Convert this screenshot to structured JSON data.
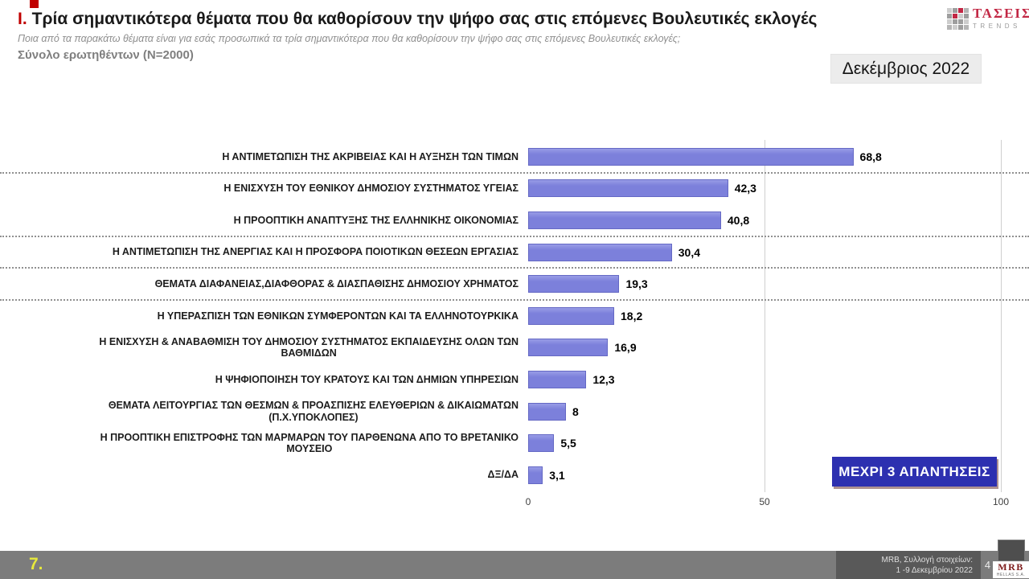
{
  "slide": {
    "title_prefix": "Ι.",
    "title": "Τρία σημαντικότερα θέματα που θα καθορίσουν την ψήφο σας στις επόμενες Βουλευτικές εκλογές",
    "subtitle": "Ποια από τα παρακάτω θέματα είναι για εσάς προσωπικά τα τρία σημαντικότερα που θα καθορίσουν την ψήφο σας στις επόμενες Βουλευτικές εκλογές;",
    "sample": "Σύνολο ερωτηθέντων (N=2000)",
    "date_badge": "Δεκέμβριος 2022",
    "answers_badge": "ΜΕΧΡΙ 3 ΑΠΑΝΤΗΣΕΙΣ",
    "slide_marker": "7.",
    "page_number": "4"
  },
  "taseis_logo": {
    "name": "ΤΑΣΕΙΣ",
    "sub": "TRENDS"
  },
  "footer": {
    "source_line1": "MRB, Συλλογή στοιχείων:",
    "source_line2": "1 -9 Δεκεμβρίου 2022",
    "mrb_name": "MRB",
    "mrb_sub": "HELLAS S.A."
  },
  "colors": {
    "accent_red": "#C00000",
    "bar_color": "#7C80DB",
    "badge_blue": "#2D30B0",
    "footer_gray": "#7C7C7C",
    "footer_dark": "#595959",
    "marker_yellow": "#E7E93B",
    "logo_red": "#C22744"
  },
  "chart_data": {
    "type": "bar",
    "orientation": "horizontal",
    "title": "Τρία σημαντικότερα θέματα που θα καθορίσουν την ψήφο σας στις επόμενες Βουλευτικές εκλογές",
    "categories": [
      "Η ΑΝΤΙΜΕΤΩΠΙΣΗ ΤΗΣ ΑΚΡΙΒΕΙΑΣ ΚΑΙ Η ΑΥΞΗΣΗ ΤΩΝ ΤΙΜΩΝ",
      "Η ΕΝΙΣΧΥΣΗ ΤΟΥ ΕΘΝΙΚΟΥ ΔΗΜΟΣΙΟΥ ΣΥΣΤΗΜΑΤΟΣ ΥΓΕΙΑΣ",
      "Η ΠΡΟΟΠΤΙΚΗ ΑΝΑΠΤΥΞΗΣ ΤΗΣ ΕΛΛΗΝΙΚΗΣ ΟΙΚΟΝΟΜΙΑΣ",
      "Η ΑΝΤΙΜΕΤΩΠΙΣΗ ΤΗΣ ΑΝΕΡΓΙΑΣ ΚΑΙ Η ΠΡΟΣΦΟΡΑ ΠΟΙΟΤΙΚΩΝ ΘΕΣΕΩΝ ΕΡΓΑΣΙΑΣ",
      "ΘΕΜΑΤΑ ΔΙΑΦΑΝΕΙΑΣ,ΔΙΑΦΘΟΡΑΣ & ΔΙΑΣΠΑΘΙΣΗΣ ΔΗΜΟΣΙΟΥ ΧΡΗΜΑΤΟΣ",
      "Η ΥΠΕΡΑΣΠΙΣΗ ΤΩΝ ΕΘΝΙΚΩΝ ΣΥΜΦΕΡΟΝΤΩΝ ΚΑΙ ΤΑ ΕΛΛΗΝΟΤΟΥΡΚΙΚΑ",
      "Η ΕΝΙΣΧΥΣΗ & ΑΝΑΒΑΘΜΙΣΗ ΤΟΥ ΔΗΜΟΣΙΟΥ ΣΥΣΤΗΜΑΤΟΣ ΕΚΠΑΙΔΕΥΣΗΣ ΟΛΩΝ ΤΩΝ\nΒΑΘΜΙΔΩΝ",
      "Η ΨΗΦΙΟΠΟΙΗΣΗ ΤΟΥ ΚΡΑΤΟΥΣ ΚΑΙ ΤΩΝ ΔΗΜΙΩΝ ΥΠΗΡΕΣΙΩΝ",
      "ΘΕΜΑΤΑ ΛΕΙΤΟΥΡΓΙΑΣ ΤΩΝ ΘΕΣΜΩΝ & ΠΡΟΑΣΠΙΣΗΣ ΕΛΕΥΘΕΡΙΩΝ & ΔΙΚΑΙΩΜΑΤΩΝ\n(Π.Χ.ΥΠΟΚΛΟΠΕΣ)",
      "Η ΠΡΟΟΠΤΙΚΗ ΕΠΙΣΤΡΟΦΗΣ ΤΩΝ ΜΑΡΜΑΡΩΝ ΤΟΥ ΠΑΡΘΕΝΩΝΑ ΑΠΟ ΤΟ ΒΡΕΤΑΝΙΚΟ\nΜΟΥΣΕΙΟ",
      "ΔΞ/ΔΑ"
    ],
    "values": [
      68.8,
      42.3,
      40.8,
      30.4,
      19.3,
      18.2,
      16.9,
      12.3,
      8,
      5.5,
      3.1
    ],
    "value_labels": [
      "68,8",
      "42,3",
      "40,8",
      "30,4",
      "19,3",
      "18,2",
      "16,9",
      "12,3",
      "8",
      "5,5",
      "3,1"
    ],
    "xlim": [
      0,
      100
    ],
    "x_ticks": [
      {
        "value": 0,
        "label": "0"
      },
      {
        "value": 50,
        "label": "50"
      },
      {
        "value": 100,
        "label": "100"
      }
    ],
    "gridlines_at": [
      50,
      100
    ],
    "separators_after_index": [
      0,
      2,
      3,
      4
    ],
    "bar_color": "#7C80DB",
    "grid": "partial-vertical",
    "legend_position": "none"
  }
}
